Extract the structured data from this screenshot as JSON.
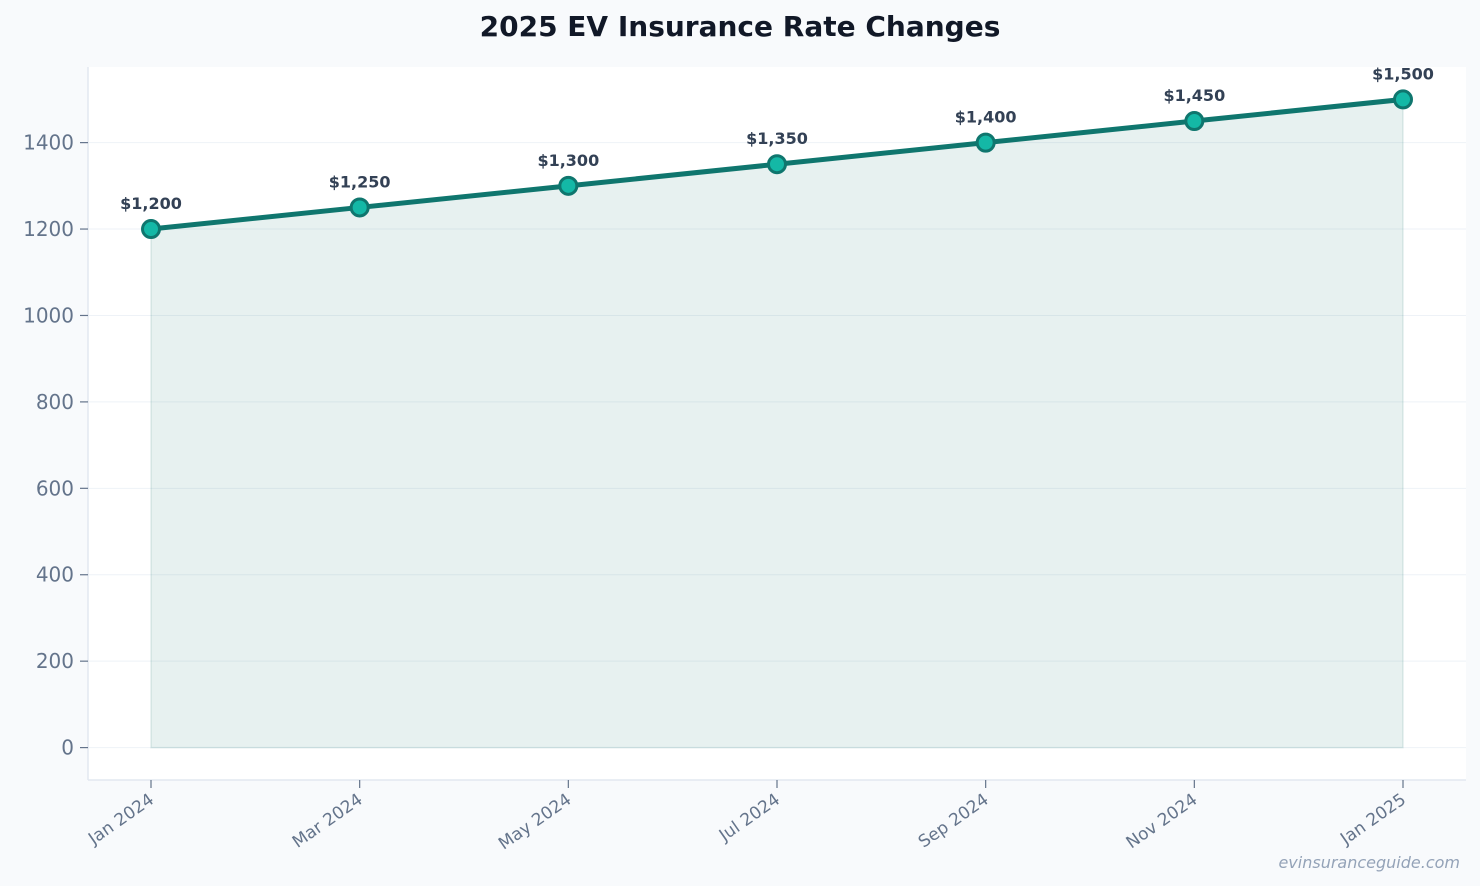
{
  "chart_data": {
    "type": "area",
    "title": "2025 EV Insurance Rate Changes",
    "xlabel": "",
    "ylabel": "",
    "categories": [
      "Jan 2024",
      "Mar 2024",
      "May 2024",
      "Jul 2024",
      "Sep 2024",
      "Nov 2024",
      "Jan 2025"
    ],
    "values": [
      1200,
      1250,
      1300,
      1350,
      1400,
      1450,
      1500
    ],
    "data_labels": [
      "$1,200",
      "$1,250",
      "$1,300",
      "$1,350",
      "$1,400",
      "$1,450",
      "$1,500"
    ],
    "yticks": [
      0,
      200,
      400,
      600,
      800,
      1000,
      1200,
      1400
    ],
    "ylim": [
      -75,
      1575
    ],
    "grid": true,
    "legend": "none",
    "colors": {
      "line": "#0f766e",
      "marker_fill": "#14b8a6",
      "area_fill": "#0f766e",
      "tick_text": "#64748b",
      "label_text": "#334155"
    }
  },
  "footer": {
    "watermark": "evinsuranceguide.com"
  }
}
